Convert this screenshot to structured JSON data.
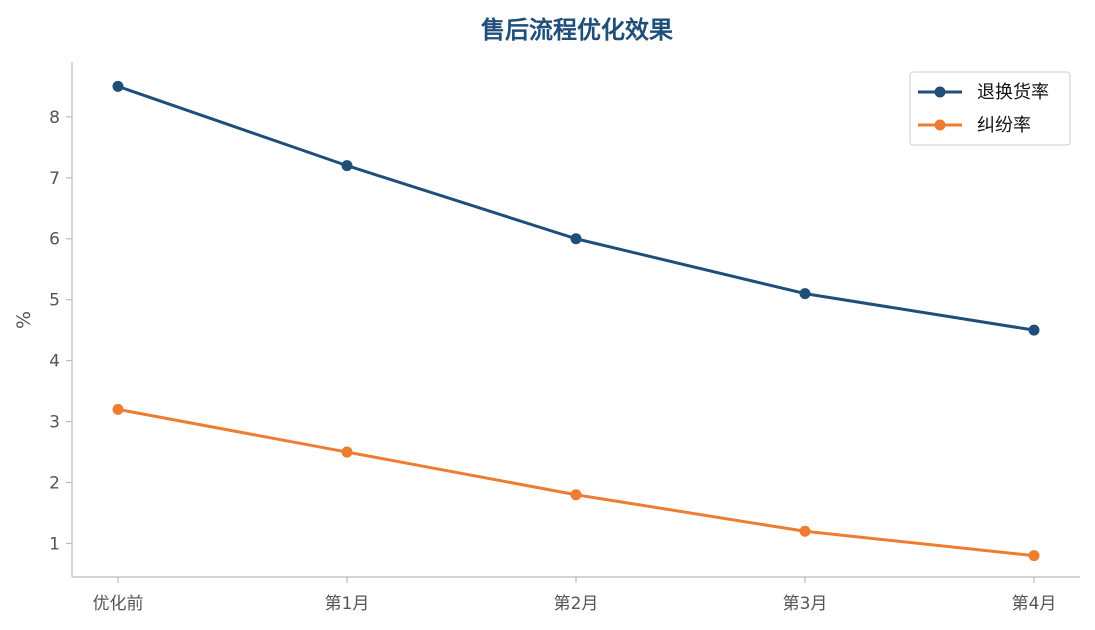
{
  "chart_data": {
    "type": "line",
    "title": "售后流程优化效果",
    "xlabel": "",
    "ylabel": "%",
    "categories": [
      "优化前",
      "第1月",
      "第2月",
      "第3月",
      "第4月"
    ],
    "series": [
      {
        "name": "退换货率",
        "values": [
          8.5,
          7.2,
          6.0,
          5.1,
          4.5
        ],
        "color": "#1f4e79"
      },
      {
        "name": "纠纷率",
        "values": [
          3.2,
          2.5,
          1.8,
          1.2,
          0.8
        ],
        "color": "#ed7d31"
      }
    ],
    "yticks": [
      1,
      2,
      3,
      4,
      5,
      6,
      7,
      8
    ],
    "ylim": [
      0.45,
      8.9
    ],
    "grid": false,
    "legend": "top-right"
  }
}
